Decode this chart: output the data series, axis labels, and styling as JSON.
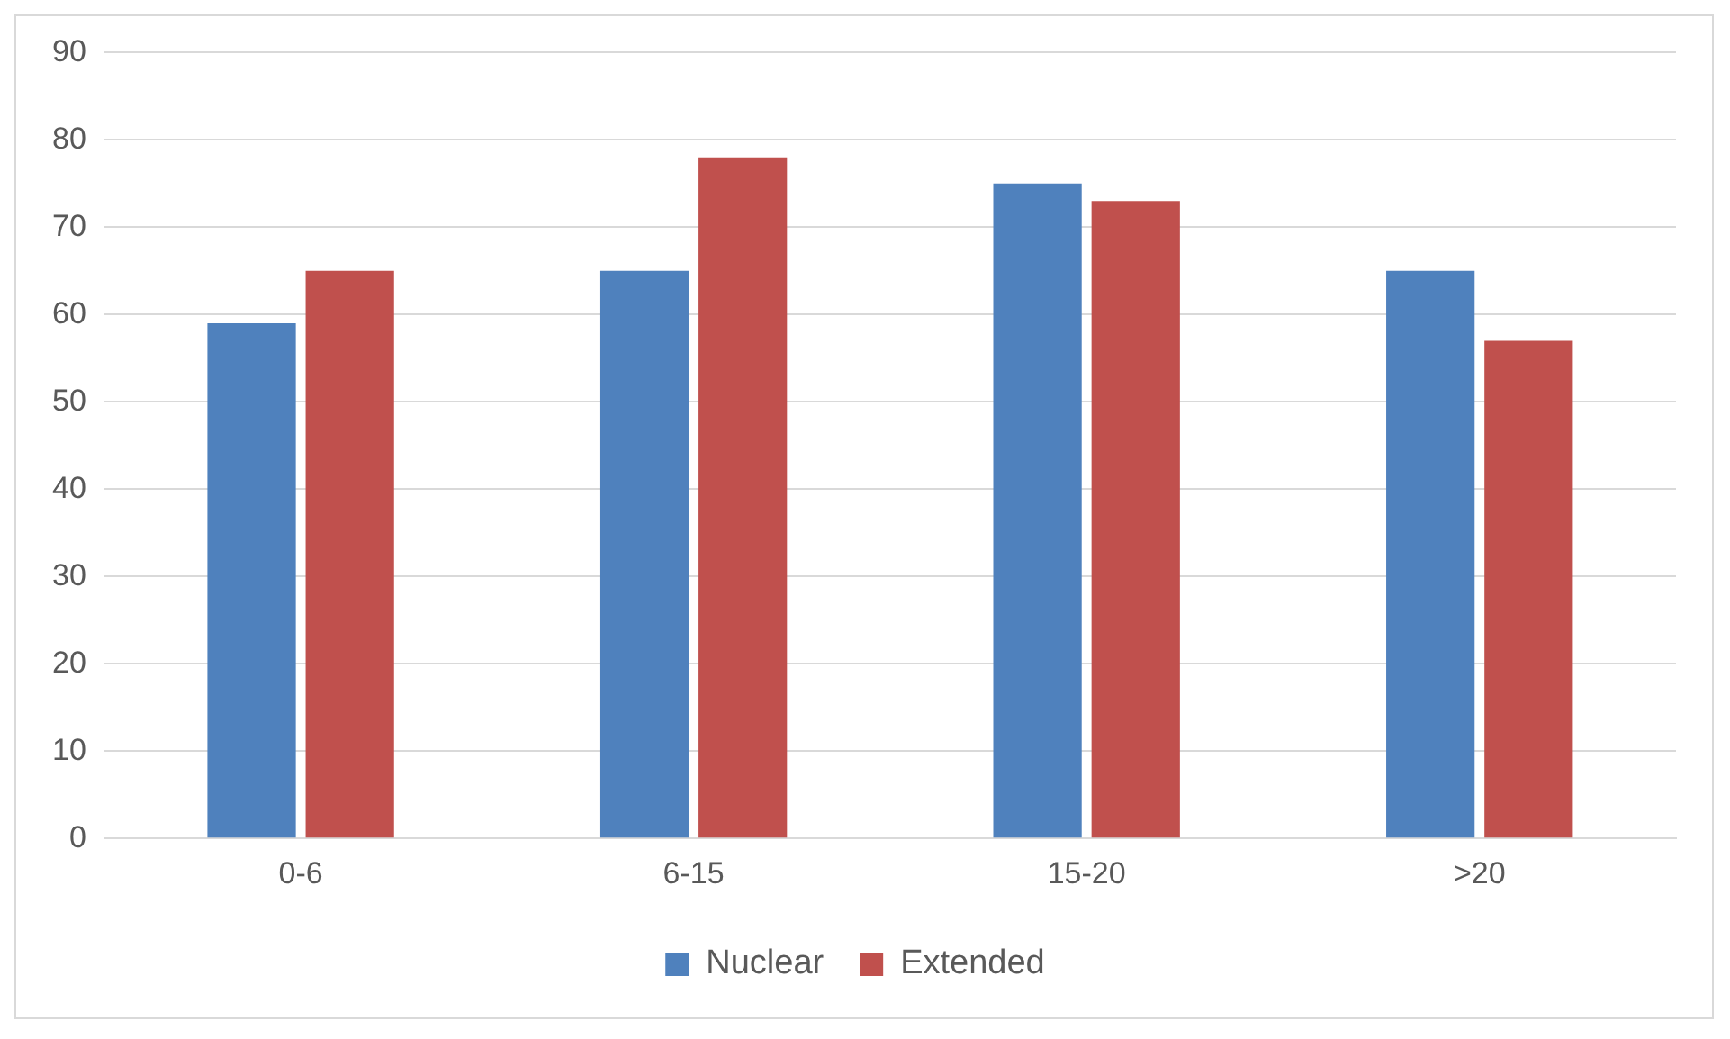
{
  "chart_data": {
    "type": "bar",
    "categories": [
      "0-6",
      "6-15",
      "15-20",
      ">20"
    ],
    "series": [
      {
        "name": "Nuclear",
        "color": "#4f81bd",
        "values": [
          59,
          65,
          75,
          65
        ]
      },
      {
        "name": "Extended",
        "color": "#c0504d",
        "values": [
          65,
          78,
          73,
          57
        ]
      }
    ],
    "ylim": [
      0,
      90
    ],
    "yticks": [
      0,
      10,
      20,
      30,
      40,
      50,
      60,
      70,
      80,
      90
    ],
    "grid": "y",
    "legend": "bottom"
  }
}
